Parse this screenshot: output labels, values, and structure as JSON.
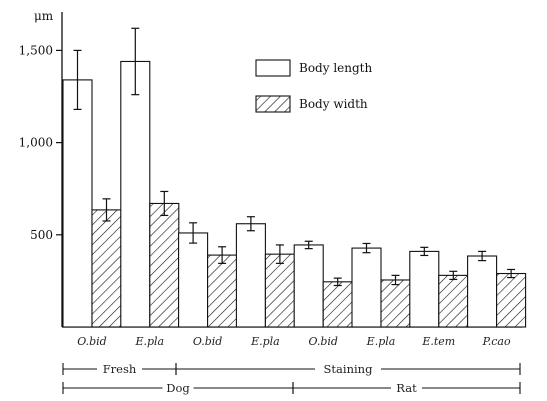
{
  "chart_data": {
    "type": "bar",
    "y_unit": "μm",
    "ylim": [
      0,
      1700
    ],
    "yticks": [
      500,
      1000,
      1500
    ],
    "ytick_labels": [
      "500",
      "1,000",
      "1,500"
    ],
    "categories": [
      "O.bid",
      "E.pla",
      "O.bid",
      "E.pla",
      "O.bid",
      "E.pla",
      "E.tem",
      "P.cao"
    ],
    "series": [
      {
        "name": "Body length",
        "fill": "white",
        "values": [
          1340,
          1440,
          510,
          560,
          445,
          428,
          410,
          385
        ],
        "errors": [
          160,
          180,
          55,
          38,
          20,
          25,
          22,
          25
        ]
      },
      {
        "name": "Body width",
        "fill": "hatched",
        "values": [
          635,
          670,
          390,
          395,
          245,
          255,
          280,
          290
        ],
        "errors": [
          60,
          65,
          45,
          50,
          20,
          25,
          22,
          22
        ]
      }
    ],
    "groups": [
      {
        "label": "Fresh",
        "from": 0,
        "to": 1,
        "row": 1
      },
      {
        "label": "Staining",
        "from": 2,
        "to": 7,
        "row": 1
      },
      {
        "label": "Dog",
        "from": 0,
        "to": 3,
        "row": 2
      },
      {
        "label": "Rat",
        "from": 4,
        "to": 7,
        "row": 2
      }
    ],
    "legend": {
      "position": "top-right"
    },
    "grid": false
  }
}
